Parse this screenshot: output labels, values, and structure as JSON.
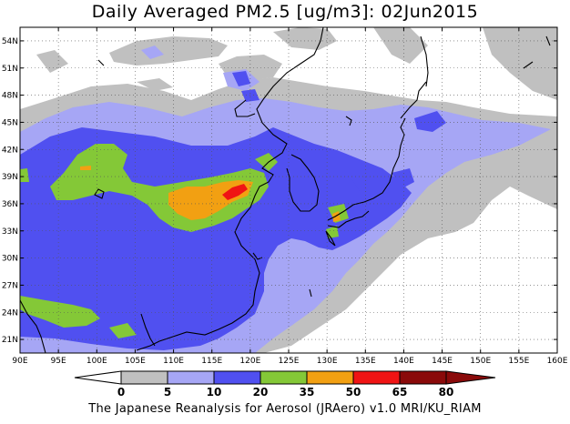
{
  "title": "Daily Averaged PM2.5 [ug/m3]: 02Jun2015",
  "credit": "The Japanese Reanalysis for Aerosol (JRAero) v1.0 MRI/KU_RIAM",
  "map": {
    "lon_range": [
      90,
      160
    ],
    "lat_range": [
      19.5,
      55.5
    ],
    "lon_ticks": [
      90,
      95,
      100,
      105,
      110,
      115,
      120,
      125,
      130,
      135,
      140,
      145,
      150,
      155,
      160
    ],
    "lon_labels": [
      "90E",
      "95E",
      "100E",
      "105E",
      "110E",
      "115E",
      "120E",
      "125E",
      "130E",
      "135E",
      "140E",
      "145E",
      "150E",
      "155E",
      "160E"
    ],
    "lat_ticks": [
      21,
      24,
      27,
      30,
      33,
      36,
      39,
      42,
      45,
      48,
      51,
      54
    ],
    "lat_labels": [
      "21N",
      "24N",
      "27N",
      "30N",
      "33N",
      "36N",
      "39N",
      "42N",
      "45N",
      "48N",
      "51N",
      "54N"
    ],
    "grid": "dotted"
  },
  "colorbar": {
    "levels": [
      0,
      5,
      10,
      20,
      35,
      50,
      65,
      80
    ],
    "labels": [
      "0",
      "5",
      "10",
      "20",
      "35",
      "50",
      "65",
      "80"
    ],
    "colors": [
      "#ffffff",
      "#c0c0c0",
      "#a6a6f5",
      "#5050f0",
      "#84c837",
      "#f2a012",
      "#f01414",
      "#8a0a0a"
    ],
    "arrows": "both ends"
  },
  "colors": {
    "c0_5": "#ffffff",
    "c5_10": "#c0c0c0",
    "c10_20": "#a6a6f5",
    "c20_35": "#5050f0",
    "c35_50": "#84c837",
    "c50_65": "#f2a012",
    "c65_80": "#f01414",
    "c80plus": "#8a0a0a"
  }
}
